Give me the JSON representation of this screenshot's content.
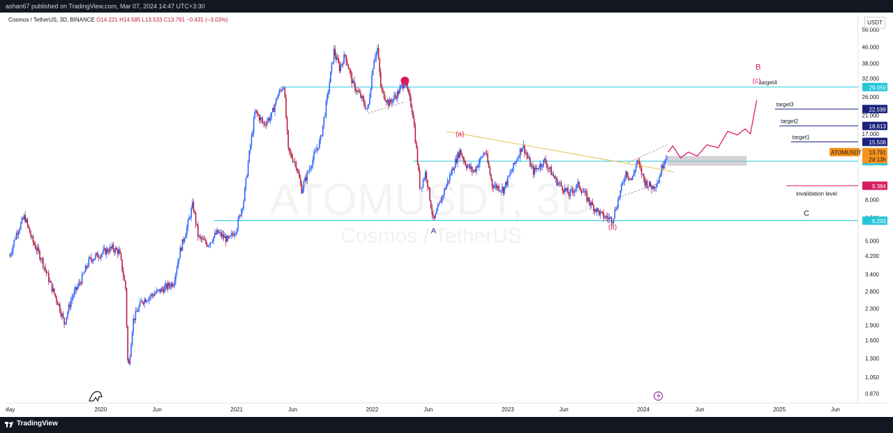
{
  "header": {
    "published": "ashan67 published on TradingView.com, Mar 07, 2024 14:47 UTC+3:30"
  },
  "legend": {
    "symbol": "Cosmos / TetherUS, 3D, BINANCE",
    "open": "O14.221",
    "high": "H14.585",
    "low": "L13.533",
    "close": "C13.791",
    "change": "−0.431 (−3.03%)"
  },
  "currency": "USDT",
  "watermark": {
    "main": "ATOMUSDT, 3D",
    "sub": "Cosmos / TetherUS"
  },
  "footer": {
    "brand": "TradingView"
  },
  "colors": {
    "up": "#2962ff",
    "down": "#b71c3c",
    "accent": "#d81b60",
    "level": "#26c6da",
    "target": "#1a237e"
  },
  "chart_data": {
    "type": "candlestick",
    "symbol": "ATOMUSDT",
    "timeframe": "3D",
    "exchange": "BINANCE",
    "yscale": "log",
    "ylim": [
      0.78,
      60
    ],
    "y_ticks": [
      "56.000",
      "46.000",
      "38.000",
      "32.000",
      "26.000",
      "21.000",
      "17.000",
      "8.000",
      "6.500",
      "5.000",
      "4.200",
      "3.400",
      "2.800",
      "2.300",
      "1.900",
      "1.600",
      "1.300",
      "1.050",
      "0.870"
    ],
    "x_ticks": [
      "May",
      "2020",
      "Jun",
      "2021",
      "Jun",
      "2022",
      "Jun",
      "2023",
      "Jun",
      "2024",
      "Jun",
      "2025",
      "Jun"
    ],
    "price_series": [
      [
        "2019-05-01",
        4.2
      ],
      [
        "2019-05-20",
        5.5
      ],
      [
        "2019-06-10",
        6.6
      ],
      [
        "2019-07-01",
        5.0
      ],
      [
        "2019-07-25",
        4.1
      ],
      [
        "2019-08-20",
        3.0
      ],
      [
        "2019-09-10",
        2.4
      ],
      [
        "2019-09-25",
        1.95
      ],
      [
        "2019-10-15",
        2.6
      ],
      [
        "2019-11-10",
        3.2
      ],
      [
        "2019-12-01",
        4.0
      ],
      [
        "2019-12-20",
        4.2
      ],
      [
        "2020-01-10",
        4.4
      ],
      [
        "2020-02-01",
        4.6
      ],
      [
        "2020-02-20",
        4.4
      ],
      [
        "2020-03-08",
        2.9
      ],
      [
        "2020-03-15",
        1.1
      ],
      [
        "2020-03-28",
        2.0
      ],
      [
        "2020-04-20",
        2.5
      ],
      [
        "2020-05-20",
        2.7
      ],
      [
        "2020-06-20",
        2.9
      ],
      [
        "2020-07-15",
        3.1
      ],
      [
        "2020-08-01",
        4.4
      ],
      [
        "2020-08-20",
        5.8
      ],
      [
        "2020-09-05",
        7.6
      ],
      [
        "2020-09-20",
        5.2
      ],
      [
        "2020-10-15",
        4.8
      ],
      [
        "2020-11-10",
        5.5
      ],
      [
        "2020-12-10",
        5.0
      ],
      [
        "2021-01-01",
        5.8
      ],
      [
        "2021-01-20",
        8.0
      ],
      [
        "2021-02-05",
        14.0
      ],
      [
        "2021-02-20",
        22.0
      ],
      [
        "2021-03-15",
        19.0
      ],
      [
        "2021-04-05",
        21.0
      ],
      [
        "2021-04-20",
        26.0
      ],
      [
        "2021-05-08",
        30.0
      ],
      [
        "2021-05-20",
        14.0
      ],
      [
        "2021-06-10",
        12.0
      ],
      [
        "2021-06-25",
        9.0
      ],
      [
        "2021-07-20",
        12.0
      ],
      [
        "2021-08-15",
        16.0
      ],
      [
        "2021-09-01",
        25.0
      ],
      [
        "2021-09-20",
        44.0
      ],
      [
        "2021-10-05",
        36.0
      ],
      [
        "2021-10-20",
        42.0
      ],
      [
        "2021-11-10",
        30.0
      ],
      [
        "2021-12-01",
        26.0
      ],
      [
        "2021-12-20",
        22.0
      ],
      [
        "2022-01-05",
        40.0
      ],
      [
        "2022-01-15",
        45.0
      ],
      [
        "2022-01-25",
        28.0
      ],
      [
        "2022-02-15",
        24.0
      ],
      [
        "2022-03-10",
        27.0
      ],
      [
        "2022-03-30",
        31.0
      ],
      [
        "2022-04-20",
        22.0
      ],
      [
        "2022-05-10",
        9.0
      ],
      [
        "2022-05-25",
        11.0
      ],
      [
        "2022-06-15",
        6.2
      ],
      [
        "2022-07-10",
        8.5
      ],
      [
        "2022-08-10",
        12.0
      ],
      [
        "2022-08-25",
        14.0
      ],
      [
        "2022-09-10",
        12.0
      ],
      [
        "2022-10-01",
        11.0
      ],
      [
        "2022-11-01",
        14.0
      ],
      [
        "2022-11-20",
        9.5
      ],
      [
        "2022-12-20",
        9.0
      ],
      [
        "2023-01-10",
        11.0
      ],
      [
        "2023-02-10",
        15.0
      ],
      [
        "2023-03-10",
        11.0
      ],
      [
        "2023-04-10",
        12.5
      ],
      [
        "2023-05-10",
        10.0
      ],
      [
        "2023-06-15",
        8.5
      ],
      [
        "2023-07-10",
        9.5
      ],
      [
        "2023-08-15",
        7.5
      ],
      [
        "2023-09-15",
        6.6
      ],
      [
        "2023-10-10",
        6.4
      ],
      [
        "2023-10-25",
        8.0
      ],
      [
        "2023-11-15",
        11.0
      ],
      [
        "2023-12-01",
        10.0
      ],
      [
        "2023-12-15",
        12.5
      ],
      [
        "2024-01-05",
        9.8
      ],
      [
        "2024-01-25",
        9.2
      ],
      [
        "2024-02-10",
        10.0
      ],
      [
        "2024-02-25",
        12.5
      ],
      [
        "2024-03-07",
        13.791
      ]
    ],
    "projection": [
      [
        "2024-03-07",
        13.791
      ],
      [
        "2024-03-20",
        14.8
      ],
      [
        "2024-04-10",
        12.9
      ],
      [
        "2024-05-01",
        13.8
      ],
      [
        "2024-05-25",
        13.2
      ],
      [
        "2024-06-20",
        15.0
      ],
      [
        "2024-07-20",
        14.5
      ],
      [
        "2024-08-15",
        17.5
      ],
      [
        "2024-09-10",
        16.8
      ],
      [
        "2024-10-01",
        18.0
      ],
      [
        "2024-10-15",
        17.0
      ],
      [
        "2024-11-01",
        25.0
      ]
    ],
    "horizontal_levels": [
      {
        "label": "29.050",
        "value": 29.05,
        "color": "#26c6da"
      },
      {
        "label": "12.440",
        "value": 12.44,
        "color": "#26c6da"
      },
      {
        "label": "6.293",
        "value": 6.293,
        "color": "#26c6da"
      }
    ],
    "target_lines": [
      {
        "name": "target4",
        "value": 29.05,
        "label": "29.050"
      },
      {
        "name": "target3",
        "value": 22.599,
        "label": "22.599"
      },
      {
        "name": "target2",
        "value": 18.613,
        "label": "18.613"
      },
      {
        "name": "target1",
        "value": 15.506,
        "label": "15.506"
      }
    ],
    "invalidation": {
      "name": "invalidation level",
      "value": 9.384,
      "label": "9.384"
    },
    "current": {
      "symbol": "ATOMUSDT",
      "value": 13.791,
      "label": "13.791",
      "countdown": "2d 13h"
    },
    "wave_labels": [
      {
        "text": "A",
        "date": "2022-06-15",
        "price": 5.45
      },
      {
        "text": "(a)",
        "date": "2022-08-25",
        "price": 16.5
      },
      {
        "text": "(b)",
        "date": "2023-10-10",
        "price": 5.7
      },
      {
        "text": "B",
        "date": "2024-11-05",
        "price": 35.5
      },
      {
        "text": "(c)",
        "date": "2024-11-01",
        "price": 30.5
      },
      {
        "text": "C",
        "date": "2025-03-15",
        "price": 6.65
      }
    ]
  }
}
